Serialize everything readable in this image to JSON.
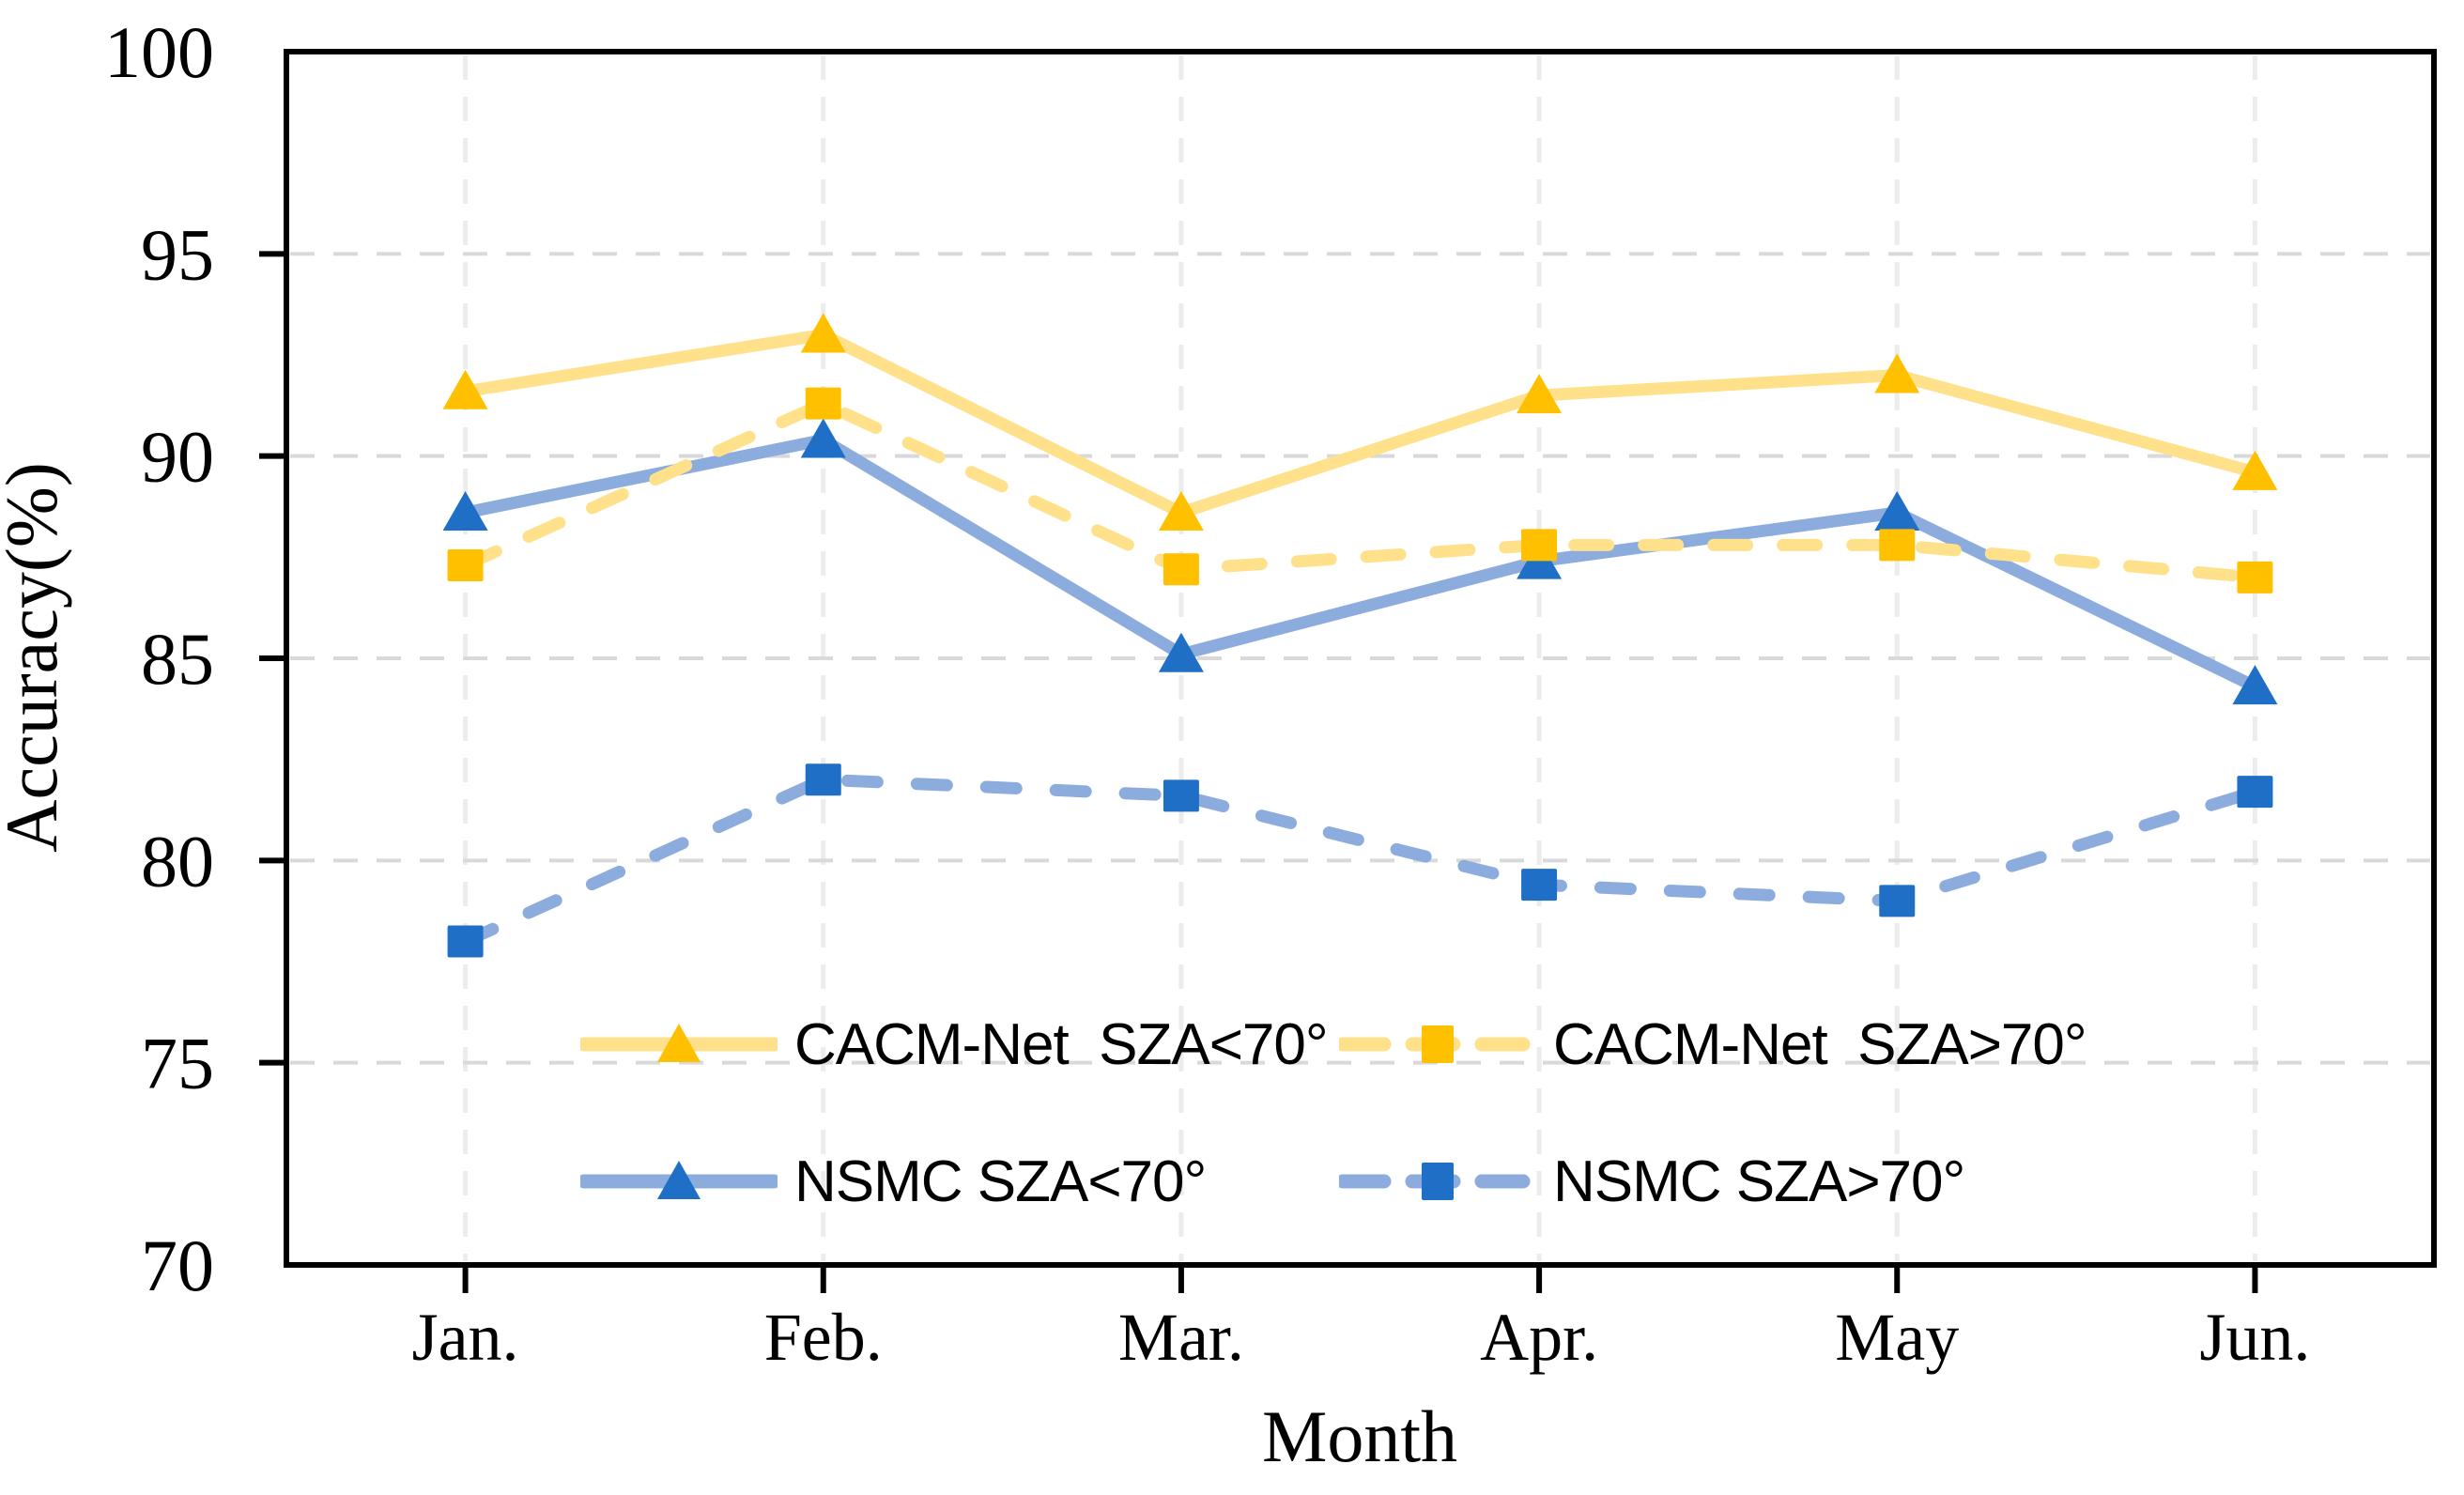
{
  "chart_data": {
    "type": "line",
    "title": "",
    "xlabel": "Month",
    "ylabel": "Accuracy(%)",
    "categories": [
      "Jan.",
      "Feb.",
      "Mar.",
      "Apr.",
      "May",
      "Jun."
    ],
    "yticks": [
      100,
      95,
      90,
      85,
      80,
      75,
      70
    ],
    "ylim": [
      70,
      100
    ],
    "grid": "dashed light-gray horizontal and vertical gridlines, full black plot frame",
    "legend_position": "inside plot, lower center, two columns by two rows",
    "colors": {
      "cacm_line": "#FFE18C",
      "cacm_marker": "#FFC000",
      "nsmc_line": "#8BACDD",
      "nsmc_marker": "#1E6FC5",
      "h_gridline": "#D9D9D9",
      "v_gridline": "#ECECEC",
      "axis": "#000000"
    },
    "series": [
      {
        "name": "CACM-Net  SZA<70°",
        "line_style": "solid",
        "marker": "triangle",
        "line_color": "#FFE18C",
        "marker_color": "#FFC000",
        "values": [
          91.6,
          93.0,
          88.6,
          91.5,
          92.0,
          89.6
        ]
      },
      {
        "name": "CACM-Net  SZA>70°",
        "line_style": "dashed",
        "marker": "square",
        "line_color": "#FFE18C",
        "marker_color": "#FFC000",
        "values": [
          87.3,
          91.3,
          87.2,
          87.8,
          87.8,
          87.0
        ]
      },
      {
        "name": "NSMC SZA<70°",
        "line_style": "solid",
        "marker": "triangle",
        "line_color": "#8BACDD",
        "marker_color": "#1E6FC5",
        "values": [
          88.6,
          90.4,
          85.1,
          87.4,
          88.6,
          84.3
        ]
      },
      {
        "name": "NSMC SZA>70°",
        "line_style": "dashed",
        "marker": "square",
        "line_color": "#8BACDD",
        "marker_color": "#1E6FC5",
        "values": [
          78.0,
          82.0,
          81.6,
          79.4,
          79.0,
          81.7
        ]
      }
    ]
  }
}
